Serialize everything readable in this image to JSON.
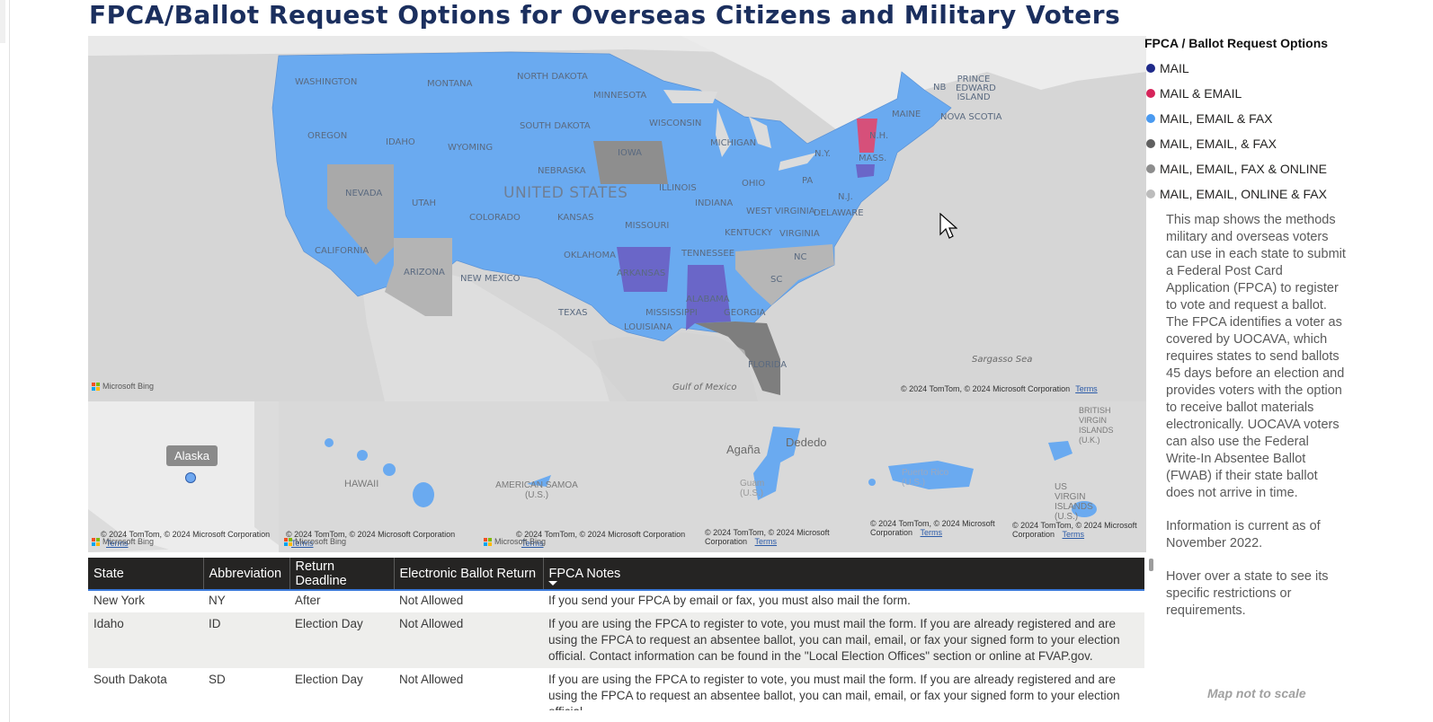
{
  "title": "FPCA/Ballot Request Options for Overseas Citizens and Military Voters",
  "map": {
    "states": [
      {
        "name": "WASHINGTON"
      },
      {
        "name": "MONTANA"
      },
      {
        "name": "NORTH DAKOTA"
      },
      {
        "name": "MINNESOTA"
      },
      {
        "name": "OREGON"
      },
      {
        "name": "IDAHO"
      },
      {
        "name": "WYOMING"
      },
      {
        "name": "SOUTH DAKOTA"
      },
      {
        "name": "WISCONSIN"
      },
      {
        "name": "MICHIGAN"
      },
      {
        "name": "IOWA"
      },
      {
        "name": "NEBRASKA"
      },
      {
        "name": "NEVADA"
      },
      {
        "name": "UTAH"
      },
      {
        "name": "COLORADO"
      },
      {
        "name": "KANSAS"
      },
      {
        "name": "ILLINOIS"
      },
      {
        "name": "INDIANA"
      },
      {
        "name": "OHIO"
      },
      {
        "name": "PA"
      },
      {
        "name": "N.Y."
      },
      {
        "name": "MAINE"
      },
      {
        "name": "N.H."
      },
      {
        "name": "MASS."
      },
      {
        "name": "CALIFORNIA"
      },
      {
        "name": "MISSOURI"
      },
      {
        "name": "KENTUCKY"
      },
      {
        "name": "WEST VIRGINIA"
      },
      {
        "name": "VIRGINIA"
      },
      {
        "name": "DELAWARE"
      },
      {
        "name": "ARIZONA"
      },
      {
        "name": "NEW MEXICO"
      },
      {
        "name": "OKLAHOMA"
      },
      {
        "name": "ARKANSAS"
      },
      {
        "name": "TENNESSEE"
      },
      {
        "name": "NC"
      },
      {
        "name": "SC"
      },
      {
        "name": "TEXAS"
      },
      {
        "name": "MISSISSIPPI"
      },
      {
        "name": "ALABAMA"
      },
      {
        "name": "GEORGIA"
      },
      {
        "name": "LOUISIANA"
      },
      {
        "name": "FLORIDA"
      },
      {
        "name": "N.J."
      }
    ],
    "country_label": "UNITED STATES",
    "other_labels": [
      "NB",
      "PRINCE EDWARD ISLAND",
      "NOVA SCOTIA"
    ],
    "water_labels": [
      "Gulf of Mexico",
      "Sargasso Sea"
    ],
    "copyright": "© 2024 TomTom, © 2024 Microsoft Corporation",
    "terms": "Terms",
    "bing": "Microsoft Bing"
  },
  "insets": {
    "tooltip": "Alaska",
    "labels": [
      "HAWAII",
      "AMERICAN SAMOA (U.S.)",
      "Agaña",
      "Dededo",
      "Guam (U.S.)",
      "Puerto Rico (U.S.)",
      "BRITISH VIRGIN ISLANDS (U.K.)",
      "US VIRGIN ISLANDS (U.S.)"
    ],
    "copyright_short": "© 2024 TomTom, © 2024 Microsoft Corporation",
    "terms": "Terms",
    "bing": "Microsoft Bing"
  },
  "table": {
    "columns": [
      "State",
      "Abbreviation",
      "Return Deadline",
      "Electronic Ballot Return",
      "FPCA Notes"
    ],
    "rows": [
      [
        "New York",
        "NY",
        "After",
        "Not Allowed",
        "If you send your FPCA by email or fax, you must also mail the form."
      ],
      [
        "Idaho",
        "ID",
        "Election Day",
        "Not Allowed",
        "If you are using the FPCA to register to vote, you must mail the form. If you are already registered and are using the FPCA to request an absentee ballot, you can mail, email, or fax your signed form to your election official. Contact information can be found in the \"Local Election Offices\" section or online at FVAP.gov."
      ],
      [
        "South Dakota",
        "SD",
        "Election Day",
        "Not Allowed",
        "If you are using the FPCA to register to vote, you must mail the form. If you are already registered and are using the FPCA to request an absentee ballot, you can mail, email, or fax your signed form to your election official."
      ]
    ]
  },
  "legend": {
    "title": "FPCA / Ballot Request Options",
    "items": [
      {
        "label": "MAIL",
        "color": "#1f2a8a"
      },
      {
        "label": "MAIL & EMAIL",
        "color": "#d6245a"
      },
      {
        "label": "MAIL, EMAIL & FAX",
        "color": "#4a9af0"
      },
      {
        "label": "MAIL, EMAIL, & FAX",
        "color": "#5f5f5f"
      },
      {
        "label": "MAIL, EMAIL, FAX & ONLINE",
        "color": "#8d8d8d"
      },
      {
        "label": "MAIL, EMAIL, ONLINE & FAX",
        "color": "#bcbcbc"
      }
    ]
  },
  "description": {
    "p1": "This map shows the methods military and overseas voters can use in each state to submit a Federal Post Card Application (FPCA) to register to vote and request a ballot. The FPCA identifies a voter as covered by UOCAVA, which requires states to send ballots 45 days before an election and provides voters with the option to receive ballot materials electronically. UOCAVA voters can also use the Federal Write-In Absentee Ballot (FWAB) if their state ballot does not arrive in time.",
    "p2": "Information is current as of November 2022.",
    "p3": "Hover over a state to see its specific restrictions or requirements."
  },
  "scale_note": "Map not to scale",
  "colors": {
    "blue_state": "#6aaaf0",
    "grey_state": "#a9a9a9",
    "purple_state": "#6a66c8",
    "pink_state": "#d6507a",
    "land": "#d7d7d7",
    "table_header": "#252423"
  }
}
